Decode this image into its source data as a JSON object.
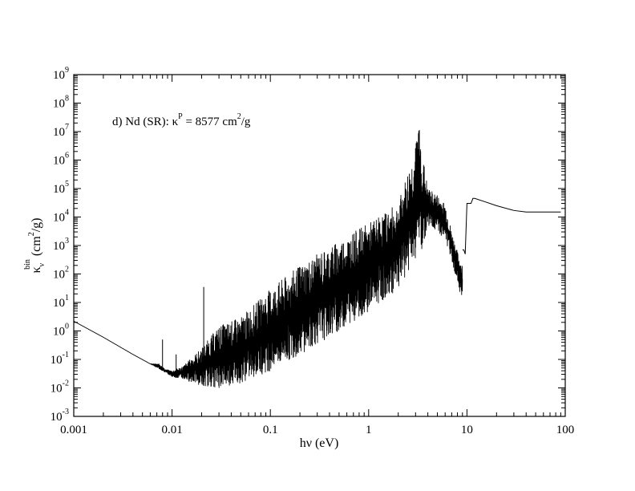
{
  "chart_data": {
    "type": "line",
    "title": "",
    "xlabel": "hν (eV)",
    "ylabel": {
      "symbol": "κ",
      "sub": "ν",
      "sup": "bin",
      "units_pre": "(cm",
      "units_exp": "2",
      "units_post": "/g)"
    },
    "x_scale": "log",
    "y_scale": "log",
    "xlim": [
      0.001,
      100
    ],
    "ylim": [
      0.001,
      1000000000
    ],
    "grid": false,
    "x_tick_labels": [
      "0.001",
      "0.01",
      "0.1",
      "1",
      "10",
      "100"
    ],
    "x_tick_values": [
      0.001,
      0.01,
      0.1,
      1,
      10,
      100
    ],
    "y_tick_exponents": [
      -3,
      -2,
      -1,
      0,
      1,
      2,
      3,
      4,
      5,
      6,
      7,
      8,
      9
    ],
    "y_tick_base": "10",
    "annotation": {
      "lead": "d) Nd (SR): κ",
      "lead_sup": "P",
      "mid": " = 8577 cm",
      "mid_sup": "2",
      "tail": "/g"
    },
    "series": [
      {
        "envelope": {
          "x": [
            0.001,
            0.002,
            0.004,
            0.006,
            0.0075,
            0.0085,
            0.01,
            0.013,
            0.02,
            0.03,
            0.05,
            0.1,
            0.2,
            0.5,
            1,
            2,
            3,
            3.2,
            3.5,
            4,
            5,
            6,
            7,
            8,
            9
          ],
          "upper": [
            2.2,
            0.6,
            0.15,
            0.07,
            0.07,
            0.045,
            0.04,
            0.06,
            0.25,
            1.5,
            3,
            30,
            200,
            1500,
            6000,
            30000,
            3000000,
            30000000,
            2000000,
            100000,
            60000,
            30000,
            3000,
            600,
            200
          ],
          "lower": [
            2.2,
            0.6,
            0.15,
            0.07,
            0.045,
            0.035,
            0.025,
            0.02,
            0.012,
            0.01,
            0.015,
            0.04,
            0.15,
            1,
            5,
            30,
            300,
            3000,
            500,
            5000,
            3000,
            1500,
            300,
            50,
            10
          ]
        },
        "spikes": [
          {
            "x": 0.008,
            "y": 0.5
          },
          {
            "x": 0.021,
            "y": 35
          },
          {
            "x": 0.011,
            "y": 0.15
          }
        ],
        "tail": {
          "x": [
            9,
            9.3,
            9.6,
            10,
            10.5,
            11,
            11.5,
            12,
            15,
            20,
            30,
            40,
            60,
            90
          ],
          "y": [
            700,
            700,
            500,
            30000,
            30000,
            30000,
            45000,
            45000,
            35000,
            25000,
            17000,
            15000,
            15000,
            15000
          ]
        }
      }
    ]
  }
}
